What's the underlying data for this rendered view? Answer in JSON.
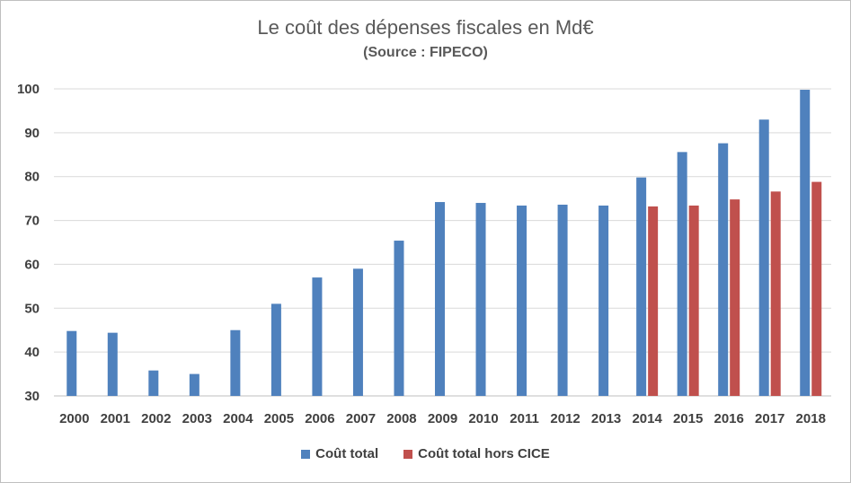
{
  "colors": {
    "series1": "#4f81bd",
    "series2": "#c0504d",
    "grid": "#d9d9d9",
    "axis": "#bfbfbf"
  },
  "chart_data": {
    "type": "bar",
    "title": "Le coût des dépenses fiscales en Md€",
    "subtitle": "(Source : FIPECO)",
    "xlabel": "",
    "ylabel": "",
    "ylim": [
      30,
      100
    ],
    "yticks": [
      30,
      40,
      50,
      60,
      70,
      80,
      90,
      100
    ],
    "grid": true,
    "legend_position": "bottom",
    "categories": [
      "2000",
      "2001",
      "2002",
      "2003",
      "2004",
      "2005",
      "2006",
      "2007",
      "2008",
      "2009",
      "2010",
      "2011",
      "2012",
      "2013",
      "2014",
      "2015",
      "2016",
      "2017",
      "2018"
    ],
    "series": [
      {
        "name": "Coût total",
        "values": [
          44.8,
          44.4,
          35.8,
          35.0,
          45.0,
          51.0,
          57.0,
          59.0,
          65.4,
          74.2,
          74.0,
          73.4,
          73.6,
          73.4,
          79.8,
          85.6,
          87.6,
          93.0,
          99.8
        ]
      },
      {
        "name": "Coût total hors CICE",
        "values": [
          null,
          null,
          null,
          null,
          null,
          null,
          null,
          null,
          null,
          null,
          null,
          null,
          null,
          null,
          73.2,
          73.4,
          74.8,
          76.6,
          78.8
        ]
      }
    ]
  }
}
